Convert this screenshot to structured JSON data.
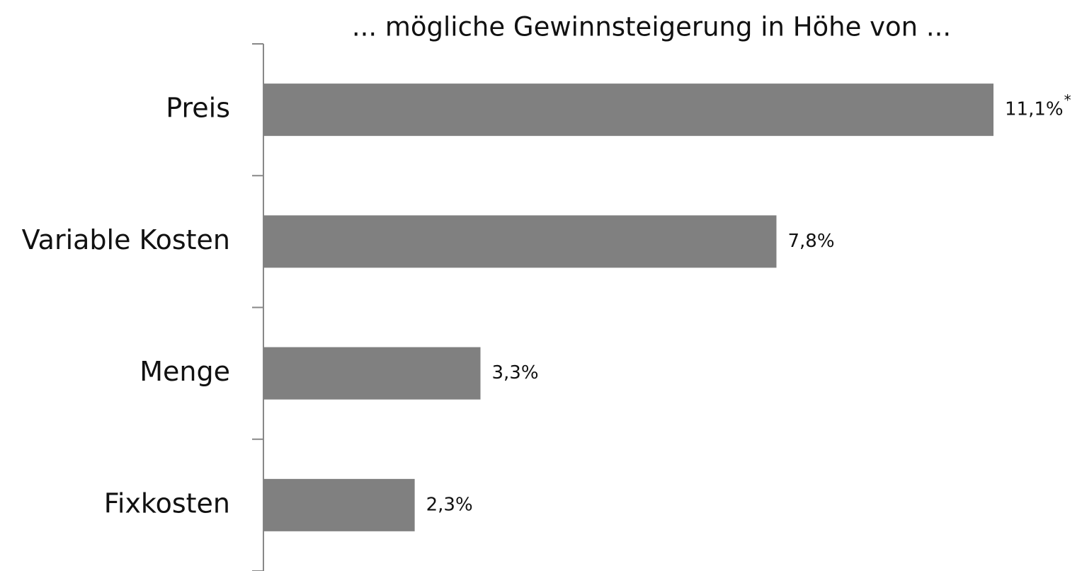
{
  "chart_data": {
    "type": "bar",
    "orientation": "horizontal",
    "title": "... mögliche Gewinnsteigerung in Höhe von ...",
    "categories": [
      "Preis",
      "Variable Kosten",
      "Menge",
      "Fixkosten"
    ],
    "values": [
      11.1,
      7.8,
      3.3,
      2.3
    ],
    "value_labels": [
      "11,1%",
      "7,8%",
      "3,3%",
      "2,3%"
    ],
    "annotation": "*",
    "color": "#808080"
  }
}
